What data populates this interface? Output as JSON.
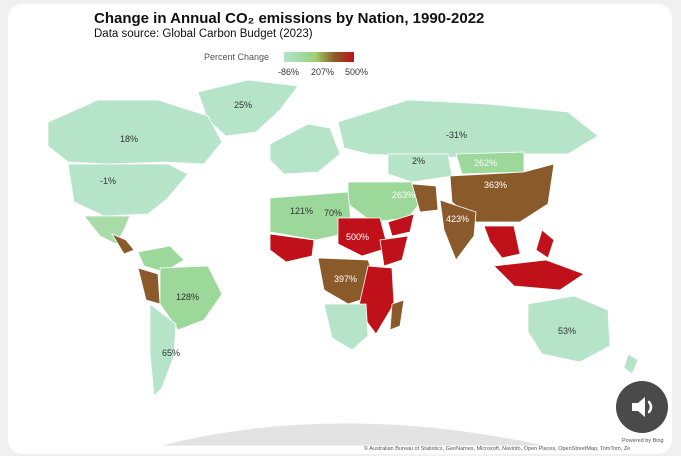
{
  "header": {
    "title": "Change in Annual CO₂ emissions by Nation, 1990-2022",
    "subtitle": "Data source: Global Carbon Budget (2023)"
  },
  "legend": {
    "title": "Percent Change",
    "min_label": "-86%",
    "mid_label": "207%",
    "max_label": "500%",
    "colors": [
      "#b5e4c9",
      "#9cd89a",
      "#8b5a2b",
      "#c0111a"
    ]
  },
  "map_labels": {
    "greenland": "25%",
    "canada": "18%",
    "usa": "-1%",
    "russia": "-31%",
    "kazakhstan": "2%",
    "mongolia": "262%",
    "china": "363%",
    "iran": "263%",
    "india": "423%",
    "west_africa": "121%",
    "libya": "70%",
    "sudan": "500%",
    "drc": "397%",
    "brazil": "128%",
    "argentina": "65%",
    "australia": "53%"
  },
  "attribution": {
    "powered_by": "Powered by Bing",
    "sources": "© Australian Bureau of Statistics, GeoNames, Microsoft, Navinfo, Open Places, OpenStreetMap, TomTom, Ze"
  },
  "audio_button": {
    "icon": "speaker-icon"
  }
}
